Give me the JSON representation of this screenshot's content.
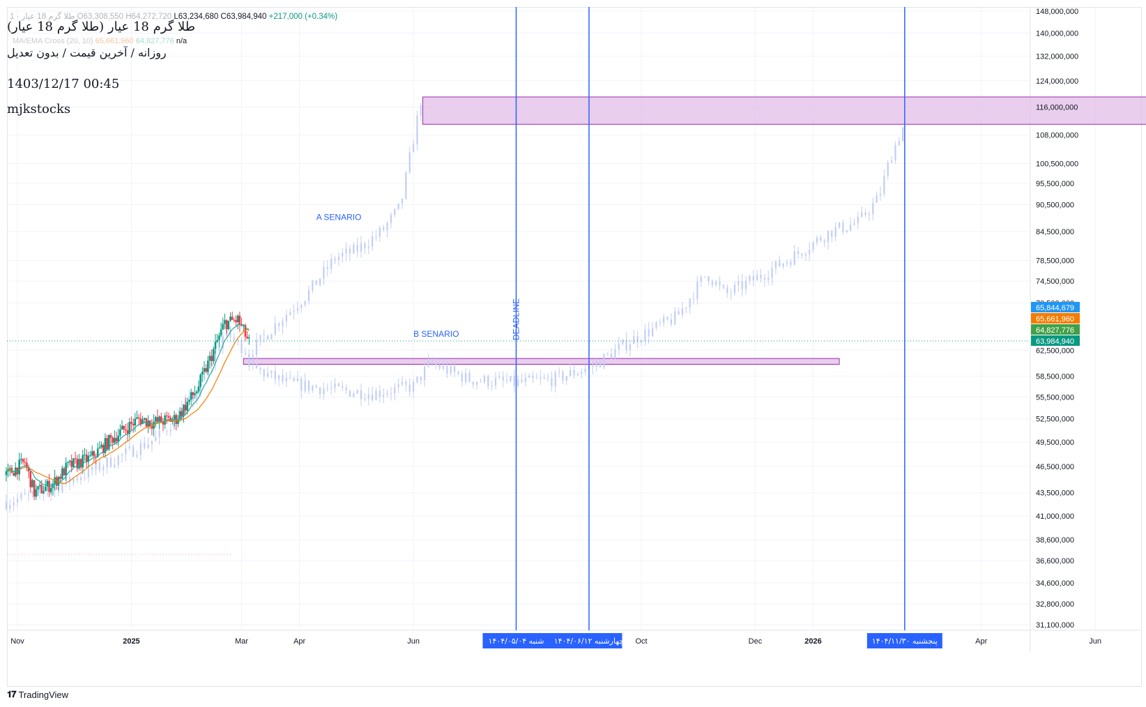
{
  "header": {
    "ohlc_prefix": "1 · طلا گرم 18 عیار",
    "ohlc_open": "O63,308,550",
    "ohlc_high": "H64,272,720",
    "ohlc_low": "L63,234,680",
    "ohlc_close": "C63,984,940",
    "ohlc_change": "+217,000 (+0.34%)",
    "ma_label": "MA/EMA Cross (20, 10)",
    "ma_value1": "65,661,960",
    "ma_value2": "64,827,776",
    "ma_na": "n/a"
  },
  "overlay": {
    "title": "طلا گرم 18 عیار (طلا گرم 18 عیار)",
    "subtitle": "روزانه / آخرین قیمت / بدون تعدیل",
    "datetime": "1403/12/17 00:45",
    "author": "mjkstocks"
  },
  "footer": {
    "brand": "TradingView"
  },
  "colors": {
    "up": "#089981",
    "down": "#f23645",
    "projection": "#c2cdf4",
    "vline": "#2962ff",
    "zone_fill": "#e1bee7",
    "zone_border": "#9c27b0",
    "ema": "#26a69a",
    "ma": "#f57c00",
    "price_line": "#089981"
  },
  "chart_data": {
    "type": "candlestick",
    "y_scale": "log",
    "y_ticks": [
      "148,000,000",
      "140,000,000",
      "132,000,000",
      "124,000,000",
      "116,000,000",
      "108,000,000",
      "100,500,000",
      "95,500,000",
      "90,500,000",
      "84,500,000",
      "78,500,000",
      "74,500,000",
      "70,500,000",
      "62,500,000",
      "58,500,000",
      "55,500,000",
      "52,500,000",
      "49,500,000",
      "46,500,000",
      "43,500,000",
      "41,000,000",
      "38,600,000",
      "36,600,000",
      "34,600,000",
      "32,800,000",
      "31,100,000"
    ],
    "y_tick_values": [
      148000000,
      140000000,
      132000000,
      124000000,
      116000000,
      108000000,
      100500000,
      95500000,
      90500000,
      84500000,
      78500000,
      74500000,
      70500000,
      62500000,
      58500000,
      55500000,
      52500000,
      49500000,
      46500000,
      43500000,
      41000000,
      38600000,
      36600000,
      34600000,
      32800000,
      31100000
    ],
    "x_ticks": [
      {
        "label": "Nov",
        "date": "2024-11-01",
        "bold": false
      },
      {
        "label": "2025",
        "date": "2025-01-01",
        "bold": true
      },
      {
        "label": "Mar",
        "date": "2025-03-01",
        "bold": false
      },
      {
        "label": "Apr",
        "date": "2025-04-01",
        "bold": false
      },
      {
        "label": "Jun",
        "date": "2025-06-01",
        "bold": false
      },
      {
        "label": "Oct",
        "date": "2025-10-01",
        "bold": false
      },
      {
        "label": "Dec",
        "date": "2025-12-01",
        "bold": false
      },
      {
        "label": "2026",
        "date": "2026-01-01",
        "bold": true
      },
      {
        "label": "Apr",
        "date": "2026-04-01",
        "bold": false
      },
      {
        "label": "Jun",
        "date": "2026-06-01",
        "bold": false
      }
    ],
    "price_labels": [
      {
        "value": "65,844,679",
        "color": "#2196f3"
      },
      {
        "value": "65,661,960",
        "color": "#f57c00"
      },
      {
        "value": "64,827,776",
        "color": "#43a047"
      },
      {
        "value": "63,984,940",
        "color": "#089981"
      }
    ],
    "last_close": 63984940,
    "date_labels": [
      "۱۴۰۴/۰۵/۰۴  شنبه",
      "چهارشنبه ۱۴۰۴/۰۶/۱۲",
      "پنجشنبه ۱۴۰۴/۱۱/۳۰"
    ],
    "vertical_lines": [
      {
        "date": "2025-07-26",
        "label": "DEADLINE"
      },
      {
        "date": "2025-09-03",
        "label": ""
      },
      {
        "date": "2026-02-19",
        "label": ""
      }
    ],
    "zones": [
      {
        "from": "2025-06-06",
        "to": "2026-07-01",
        "low": 111000000,
        "high": 119000000
      },
      {
        "from": "2025-03-02",
        "to": "2026-01-15",
        "low": 60300000,
        "high": 61200000
      }
    ],
    "annotations": [
      {
        "text": "A SENARIO",
        "date": "2025-04-10",
        "value": 87000000
      },
      {
        "text": "B SENARIO",
        "date": "2025-06-01",
        "value": 64700000
      }
    ],
    "candle_anchors": [
      [
        "2024-10-26",
        45500000
      ],
      [
        "2024-11-05",
        47000000
      ],
      [
        "2024-11-10",
        43500000
      ],
      [
        "2024-11-20",
        44500000
      ],
      [
        "2024-11-28",
        46500000
      ],
      [
        "2024-12-10",
        47500000
      ],
      [
        "2024-12-22",
        50000000
      ],
      [
        "2025-01-05",
        52500000
      ],
      [
        "2025-01-12",
        52000000
      ],
      [
        "2025-01-25",
        52500000
      ],
      [
        "2025-02-05",
        56500000
      ],
      [
        "2025-02-12",
        61000000
      ],
      [
        "2025-02-20",
        67000000
      ],
      [
        "2025-02-27",
        67500000
      ],
      [
        "2025-03-05",
        63700000
      ]
    ],
    "projection_a": [
      [
        "2024-10-26",
        42500000
      ],
      [
        "2024-11-15",
        43500000
      ],
      [
        "2024-12-15",
        46500000
      ],
      [
        "2025-01-15",
        50000000
      ],
      [
        "2025-02-05",
        56000000
      ],
      [
        "2025-02-20",
        65500000
      ],
      [
        "2025-03-05",
        62000000
      ],
      [
        "2025-03-20",
        67000000
      ],
      [
        "2025-04-05",
        72000000
      ],
      [
        "2025-04-20",
        79000000
      ],
      [
        "2025-05-01",
        80500000
      ],
      [
        "2025-05-15",
        84500000
      ],
      [
        "2025-05-25",
        90000000
      ],
      [
        "2025-06-05",
        118000000
      ]
    ],
    "projection_b": [
      [
        "2025-03-05",
        60000000
      ],
      [
        "2025-03-25",
        57500000
      ],
      [
        "2025-04-20",
        56500000
      ],
      [
        "2025-05-10",
        56000000
      ],
      [
        "2025-06-01",
        57000000
      ],
      [
        "2025-06-10",
        60500000
      ],
      [
        "2025-07-01",
        58000000
      ],
      [
        "2025-07-25",
        57500000
      ],
      [
        "2025-08-15",
        58000000
      ],
      [
        "2025-09-05",
        60000000
      ],
      [
        "2025-09-25",
        64000000
      ],
      [
        "2025-10-20",
        68000000
      ],
      [
        "2025-11-05",
        76000000
      ],
      [
        "2025-11-15",
        72000000
      ],
      [
        "2025-12-01",
        75000000
      ],
      [
        "2025-12-20",
        79000000
      ],
      [
        "2026-01-10",
        84500000
      ],
      [
        "2026-01-25",
        86500000
      ],
      [
        "2026-02-05",
        92000000
      ],
      [
        "2026-02-12",
        103000000
      ],
      [
        "2026-02-18",
        110000000
      ]
    ]
  }
}
